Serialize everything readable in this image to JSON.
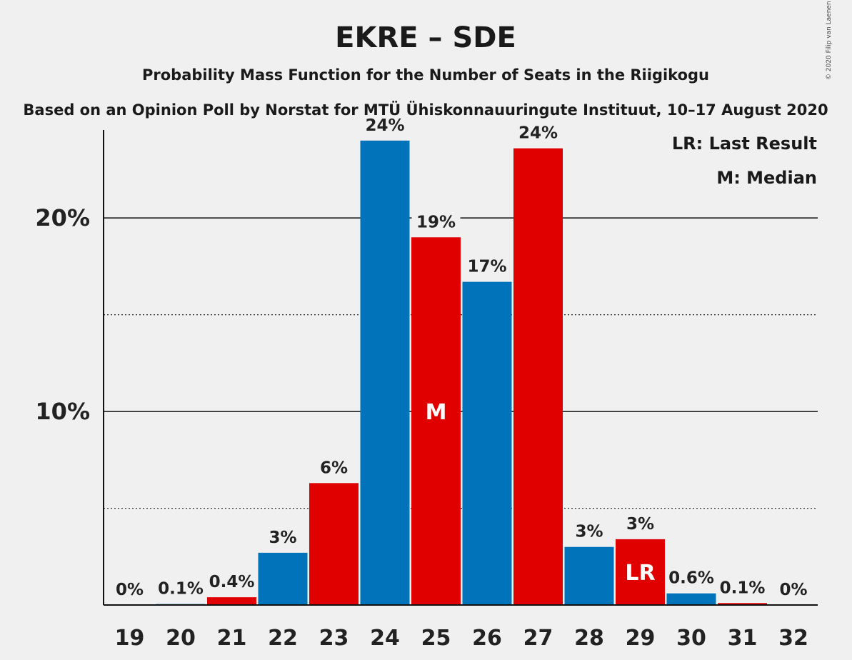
{
  "chart_data": {
    "type": "bar",
    "title": "EKRE – SDE",
    "subtitle": "Probability Mass Function for the Number of Seats in the Riigikogu",
    "subtitle2": "Based on an Opinion Poll by Norstat for MTÜ Ühiskonnauuringute Instituut, 10–17 August 2020",
    "copyright": "© 2020 Filip van Laenen",
    "legend": [
      "LR: Last Result",
      "M: Median"
    ],
    "categories": [
      "19",
      "20",
      "21",
      "22",
      "23",
      "24",
      "25",
      "26",
      "27",
      "28",
      "29",
      "30",
      "31",
      "32"
    ],
    "values": [
      0,
      0.05,
      0.4,
      2.7,
      6.3,
      24.0,
      19.0,
      16.7,
      23.6,
      3.0,
      3.4,
      0.6,
      0.1,
      0
    ],
    "value_labels": [
      "0%",
      "0.1%",
      "0.4%",
      "3%",
      "6%",
      "24%",
      "19%",
      "17%",
      "24%",
      "3%",
      "3%",
      "0.6%",
      "0.1%",
      "0%"
    ],
    "bar_colors": [
      "#0073bb",
      "#0073bb",
      "#e00000",
      "#0073bb",
      "#e00000",
      "#0073bb",
      "#e00000",
      "#0073bb",
      "#e00000",
      "#0073bb",
      "#e00000",
      "#0073bb",
      "#e00000",
      "#0073bb"
    ],
    "markers": {
      "25": "M",
      "29": "LR"
    },
    "yticks": [
      {
        "value": 10,
        "label": "10%"
      },
      {
        "value": 20,
        "label": "20%"
      }
    ],
    "minor_gridlines": [
      5,
      15
    ],
    "ylim": [
      0,
      27.5
    ],
    "grid": true,
    "legend_position": "top-right"
  }
}
